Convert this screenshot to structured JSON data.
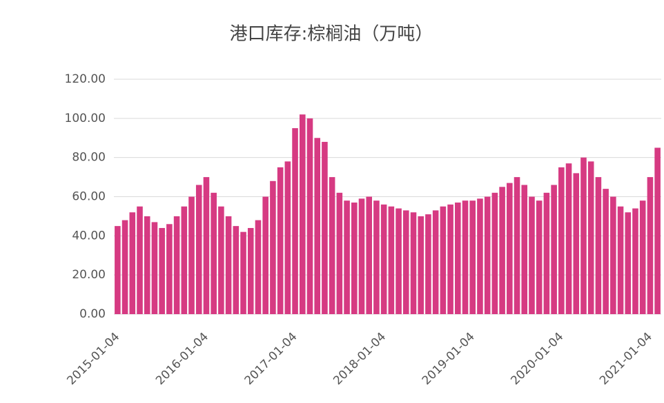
{
  "chart_data": {
    "type": "bar",
    "title": "港口库存:棕榈油（万吨）",
    "categories": [
      "2015-01-04",
      null,
      null,
      null,
      null,
      null,
      null,
      null,
      null,
      null,
      null,
      null,
      "2016-01-04",
      null,
      null,
      null,
      null,
      null,
      null,
      null,
      null,
      null,
      null,
      null,
      "2017-01-04",
      null,
      null,
      null,
      null,
      null,
      null,
      null,
      null,
      null,
      null,
      null,
      "2018-01-04",
      null,
      null,
      null,
      null,
      null,
      null,
      null,
      null,
      null,
      null,
      null,
      "2019-01-04",
      null,
      null,
      null,
      null,
      null,
      null,
      null,
      null,
      null,
      null,
      null,
      "2020-01-04",
      null,
      null,
      null,
      null,
      null,
      null,
      null,
      null,
      null,
      null,
      null,
      "2021-01-04",
      null
    ],
    "values": [
      45,
      48,
      52,
      55,
      50,
      47,
      44,
      46,
      50,
      55,
      60,
      66,
      70,
      62,
      55,
      50,
      45,
      42,
      44,
      48,
      60,
      68,
      75,
      78,
      95,
      102,
      100,
      90,
      88,
      70,
      62,
      58,
      57,
      59,
      60,
      58,
      56,
      55,
      54,
      53,
      52,
      50,
      51,
      53,
      55,
      56,
      57,
      58,
      58,
      59,
      60,
      62,
      65,
      67,
      70,
      66,
      60,
      58,
      62,
      66,
      75,
      77,
      72,
      80,
      78,
      70,
      64,
      60,
      55,
      52,
      54,
      58,
      70,
      85
    ],
    "color": "#d63a82",
    "ylim": [
      0,
      120
    ],
    "yticks": [
      {
        "value": 0,
        "label": "0.00"
      },
      {
        "value": 20,
        "label": "20.00"
      },
      {
        "value": 40,
        "label": "40.00"
      },
      {
        "value": 60,
        "label": "60.00"
      },
      {
        "value": 80,
        "label": "80.00"
      },
      {
        "value": 100,
        "label": "100.00"
      },
      {
        "value": 120,
        "label": "120.00"
      }
    ],
    "grid": true
  }
}
